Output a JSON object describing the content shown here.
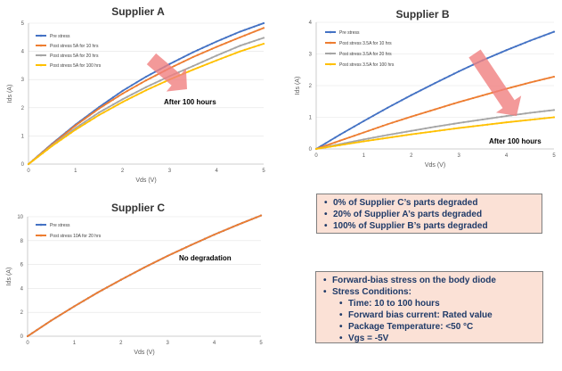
{
  "chart_data": [
    {
      "type": "line",
      "title": "Supplier A",
      "xlabel": "Vds (V)",
      "ylabel": "Ids (A)",
      "xlim": [
        0,
        5
      ],
      "ylim": [
        0,
        5
      ],
      "xticks": [
        "0",
        "1",
        "2",
        "3",
        "4",
        "5"
      ],
      "yticks": [
        "0",
        "1",
        "2",
        "3",
        "4",
        "5"
      ],
      "x": [
        0,
        0.5,
        1,
        1.5,
        2,
        2.5,
        3,
        3.5,
        4,
        4.5,
        5
      ],
      "legend_position": "top-left",
      "series": [
        {
          "name": "Pre stress",
          "color": "#4472c4",
          "values": [
            0,
            0.72,
            1.4,
            2.02,
            2.6,
            3.1,
            3.55,
            3.97,
            4.35,
            4.7,
            5.0
          ]
        },
        {
          "name": "Post stress 5A for 10 hrs",
          "color": "#ed7d31",
          "values": [
            0,
            0.7,
            1.37,
            1.97,
            2.5,
            2.97,
            3.4,
            3.8,
            4.16,
            4.5,
            4.83
          ]
        },
        {
          "name": "Post stress 5A for 20 hrs",
          "color": "#a5a5a5",
          "values": [
            0,
            0.66,
            1.28,
            1.83,
            2.3,
            2.73,
            3.12,
            3.48,
            3.85,
            4.2,
            4.48
          ]
        },
        {
          "name": "Post stress 5A for 100 hrs",
          "color": "#ffc000",
          "values": [
            0,
            0.64,
            1.22,
            1.74,
            2.2,
            2.62,
            3.0,
            3.35,
            3.68,
            4.0,
            4.27
          ]
        }
      ],
      "annotation": "After 100 hours"
    },
    {
      "type": "line",
      "title": "Supplier B",
      "xlabel": "Vds (V)",
      "ylabel": "Ids (A)",
      "xlim": [
        0,
        5
      ],
      "ylim": [
        0,
        4
      ],
      "xticks": [
        "0",
        "1",
        "2",
        "3",
        "4",
        "5"
      ],
      "yticks": [
        "0",
        "1",
        "2",
        "3",
        "4"
      ],
      "x": [
        0,
        0.5,
        1,
        1.5,
        2,
        2.5,
        3,
        3.5,
        4,
        4.5,
        5
      ],
      "legend_position": "top-left",
      "series": [
        {
          "name": "Pre stress",
          "color": "#4472c4",
          "values": [
            0,
            0.45,
            0.88,
            1.3,
            1.7,
            2.08,
            2.45,
            2.8,
            3.12,
            3.42,
            3.7
          ]
        },
        {
          "name": "Post stress 3.5A for 10 hrs",
          "color": "#ed7d31",
          "values": [
            0,
            0.26,
            0.52,
            0.78,
            1.02,
            1.25,
            1.48,
            1.69,
            1.9,
            2.1,
            2.28
          ]
        },
        {
          "name": "Post stress 3.5A for 20 hrs",
          "color": "#a5a5a5",
          "values": [
            0,
            0.15,
            0.3,
            0.44,
            0.57,
            0.7,
            0.82,
            0.93,
            1.04,
            1.14,
            1.23
          ]
        },
        {
          "name": "Post stress 3.5A for 100 hrs",
          "color": "#ffc000",
          "values": [
            0,
            0.12,
            0.24,
            0.35,
            0.46,
            0.56,
            0.66,
            0.75,
            0.84,
            0.92,
            1.0
          ]
        }
      ],
      "annotation": "After 100 hours"
    },
    {
      "type": "line",
      "title": "Supplier C",
      "xlabel": "Vds (V)",
      "ylabel": "Ids (A)",
      "xlim": [
        0,
        5
      ],
      "ylim": [
        0,
        10
      ],
      "xticks": [
        "0",
        "1",
        "2",
        "3",
        "4",
        "5"
      ],
      "yticks": [
        "0",
        "2",
        "4",
        "6",
        "8",
        "10"
      ],
      "x": [
        0,
        0.5,
        1,
        1.5,
        2,
        2.5,
        3,
        3.5,
        4,
        4.5,
        5
      ],
      "legend_position": "top-left",
      "series": [
        {
          "name": "Pre stress",
          "color": "#4472c4",
          "values": [
            0,
            1.3,
            2.5,
            3.65,
            4.72,
            5.75,
            6.72,
            7.63,
            8.5,
            9.32,
            10.1
          ]
        },
        {
          "name": "Post stress 10A for 20 hrs",
          "color": "#ed7d31",
          "values": [
            0,
            1.3,
            2.5,
            3.65,
            4.72,
            5.75,
            6.72,
            7.63,
            8.5,
            9.32,
            10.1
          ]
        }
      ],
      "annotation": "No degradation"
    }
  ],
  "summary_box": {
    "items": [
      "0% of Supplier C’s parts degraded",
      "20% of Supplier A’s parts degraded",
      "100% of Supplier B’s parts degraded"
    ]
  },
  "conditions_box": {
    "items": [
      "Forward-bias stress on the body diode",
      "Stress Conditions:"
    ],
    "subitems": [
      "Time: 10 to 100 hours",
      "Forward bias current: Rated value",
      "Package Temperature: <50 °C",
      "Vgs = -5V"
    ]
  }
}
